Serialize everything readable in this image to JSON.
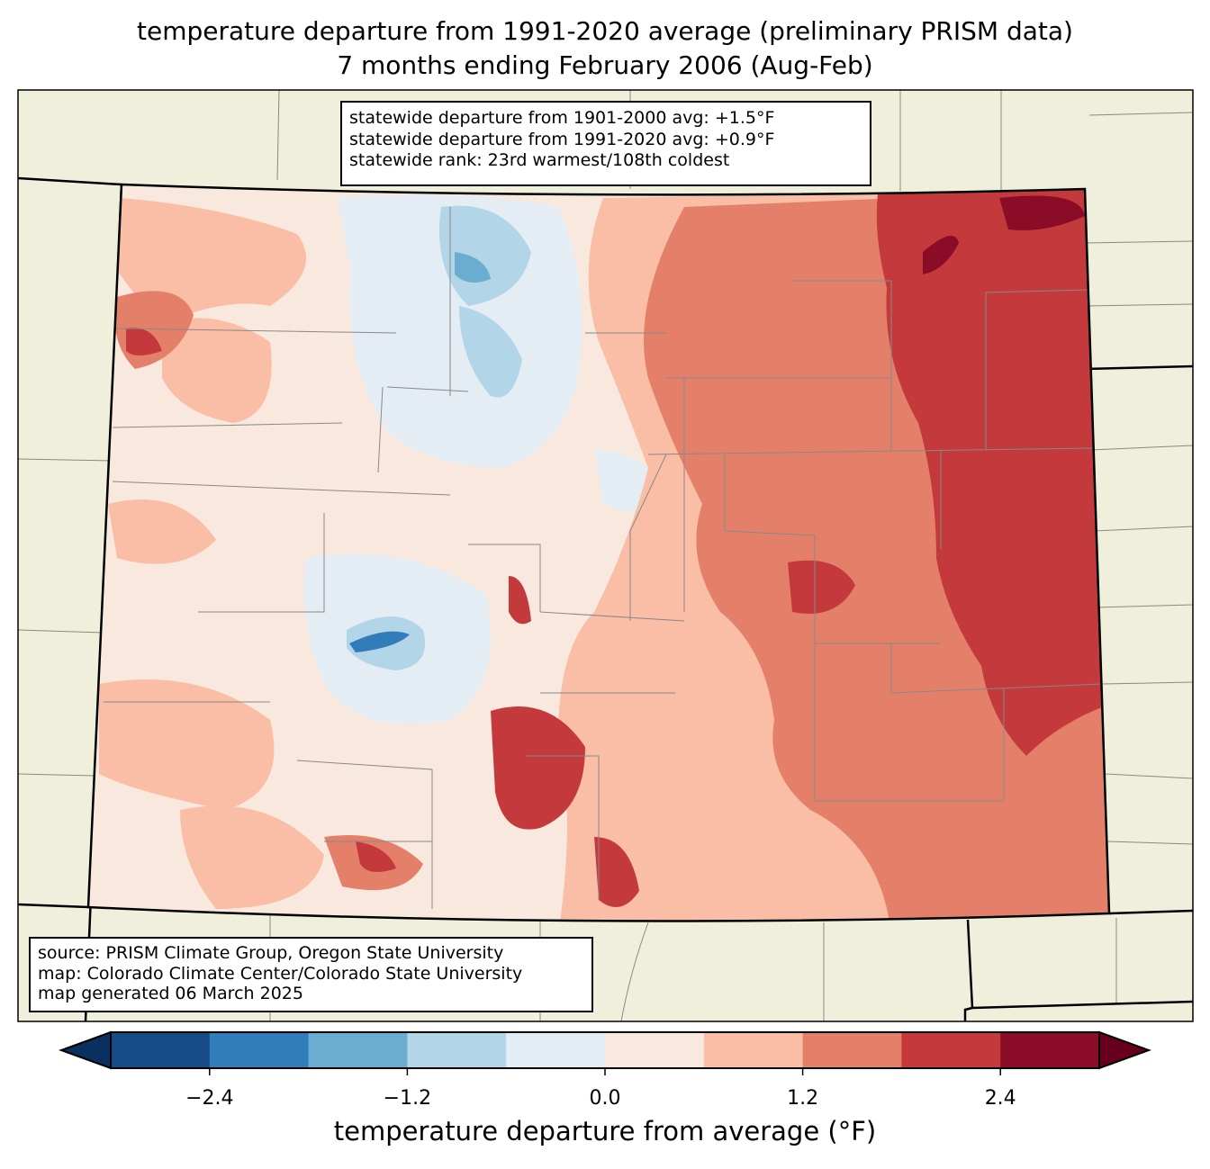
{
  "title": {
    "line1": "temperature departure from 1991-2020 average (preliminary PRISM data)",
    "line2": "7 months ending February 2006 (Aug-Feb)"
  },
  "stats_box": {
    "line1": "statewide departure from 1901-2000 avg: +1.5°F",
    "line2": "statewide departure from 1991-2020 avg: +0.9°F",
    "line3": "statewide rank: 23rd warmest/108th coldest"
  },
  "source_box": {
    "line1": "source: PRISM Climate Group, Oregon State University",
    "line2": "map: Colorado Climate Center/Colorado State University",
    "line3": "map generated 06 March 2025"
  },
  "colorbar": {
    "label": "temperature departure from average (°F)",
    "levels": [
      -3.0,
      -2.4,
      -1.8,
      -1.2,
      -0.6,
      0.0,
      0.6,
      1.2,
      1.8,
      2.4,
      3.0
    ],
    "colors": [
      "#164b88",
      "#307dba",
      "#6aadd0",
      "#b2d5e7",
      "#e5edf4",
      "#f9e8de",
      "#f9bea5",
      "#e4806a",
      "#c43a3c",
      "#8a0c26"
    ],
    "under_color": "#0a3060",
    "over_color": "#67001f",
    "ticks": [
      "−2.4",
      "−1.2",
      "0.0",
      "1.2",
      "2.4"
    ],
    "tick_values": [
      -2.4,
      -1.2,
      0.0,
      1.2,
      2.4
    ]
  },
  "map": {
    "land_color": "#efefdb",
    "region": "Colorado"
  }
}
